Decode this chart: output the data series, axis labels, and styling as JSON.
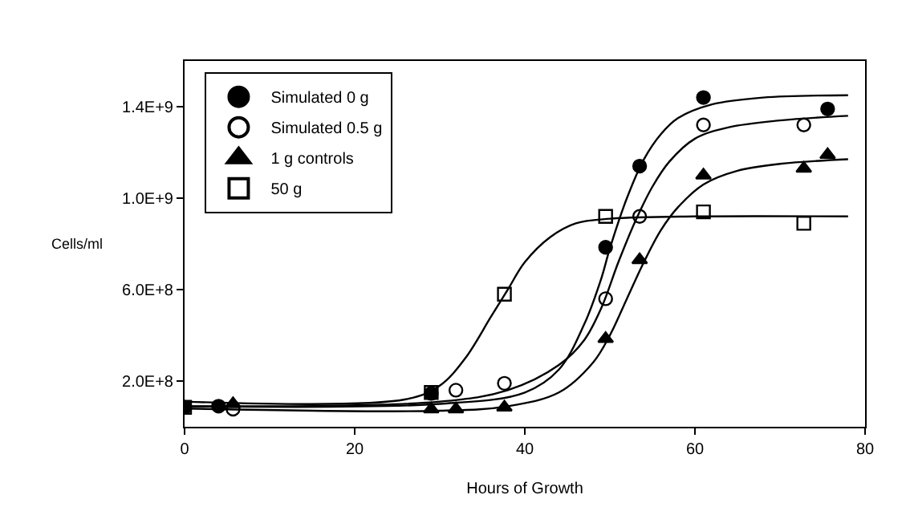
{
  "chart_data": {
    "type": "scatter",
    "xlabel": "Hours of Growth",
    "ylabel": "Cells/ml",
    "xlim": [
      0,
      80
    ],
    "xticks": [
      0,
      20,
      40,
      60,
      80
    ],
    "ylim": [
      0,
      1600000000
    ],
    "yticks": [
      {
        "value": 200000000,
        "label": "2.0E+8"
      },
      {
        "value": 600000000,
        "label": "6.0E+8"
      },
      {
        "value": 1000000000,
        "label": "1.0E+9"
      },
      {
        "value": 1400000000,
        "label": "1.4E+9"
      }
    ],
    "legend": "top left",
    "line_style": "solid",
    "series": [
      {
        "name": "Simulated 0 g",
        "color": "#000000",
        "marker": "circle",
        "x": [
          0,
          4,
          29,
          49.5,
          53.5,
          61,
          75.6
        ],
        "values": [
          85000000,
          90000000,
          146000000,
          785000000,
          1140000000,
          1440000000,
          1390000000
        ]
      },
      {
        "name": "Simulated 0.5 g",
        "color": "#000000",
        "marker": "circle-open",
        "x": [
          5.7,
          31.9,
          37.6,
          49.5,
          53.5,
          61,
          72.8
        ],
        "values": [
          77000000,
          160000000,
          190000000,
          560000000,
          920000000,
          1320000000,
          1320000000
        ]
      },
      {
        "name": "1 g controls",
        "color": "#000000",
        "marker": "triangle",
        "x": [
          5.7,
          29,
          31.9,
          37.6,
          49.5,
          53.5,
          61,
          72.8,
          75.6
        ],
        "values": [
          100000000,
          77000000,
          77000000,
          85000000,
          385000000,
          730000000,
          1100000000,
          1130000000,
          1190000000
        ]
      },
      {
        "name": "50 g",
        "color": "#000000",
        "marker": "square-open",
        "x": [
          0,
          29,
          37.6,
          49.5,
          61,
          72.8
        ],
        "values": [
          85000000,
          150000000,
          580000000,
          920000000,
          940000000,
          890000000
        ]
      },
      {
        "type": "line",
        "color": "#000000",
        "x": [
          0,
          30,
          40,
          44,
          47,
          49,
          50,
          52,
          54,
          56,
          58,
          62,
          68,
          78
        ],
        "values": [
          90000000,
          100000000,
          150000000,
          250000000,
          450000000,
          650000000,
          780000000,
          1000000000,
          1170000000,
          1280000000,
          1350000000,
          1410000000,
          1440000000,
          1450000000
        ]
      },
      {
        "type": "line",
        "color": "#000000",
        "x": [
          0,
          30,
          38,
          44,
          47,
          49,
          51,
          53,
          55,
          57,
          60,
          64,
          70,
          78
        ],
        "values": [
          90000000,
          110000000,
          160000000,
          270000000,
          380000000,
          520000000,
          720000000,
          900000000,
          1050000000,
          1160000000,
          1260000000,
          1310000000,
          1340000000,
          1360000000
        ]
      },
      {
        "type": "line",
        "color": "#000000",
        "x": [
          0,
          30,
          38,
          44,
          48,
          50,
          52,
          54,
          56,
          58,
          61,
          65,
          70,
          78
        ],
        "values": [
          80000000,
          70000000,
          90000000,
          150000000,
          280000000,
          400000000,
          560000000,
          720000000,
          860000000,
          960000000,
          1060000000,
          1120000000,
          1150000000,
          1170000000
        ]
      },
      {
        "type": "line",
        "color": "#000000",
        "x": [
          0,
          26,
          30,
          33,
          36,
          38,
          40,
          43,
          46,
          50,
          60,
          78
        ],
        "values": [
          110000000,
          120000000,
          180000000,
          300000000,
          480000000,
          600000000,
          720000000,
          830000000,
          890000000,
          910000000,
          920000000,
          920000000
        ]
      }
    ]
  }
}
